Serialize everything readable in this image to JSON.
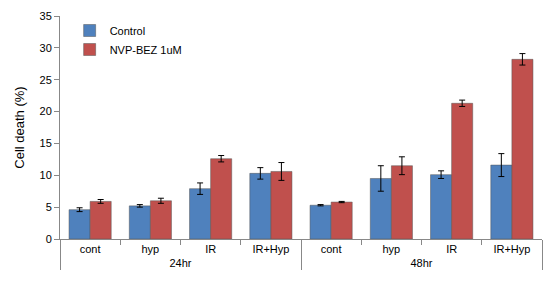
{
  "chart_data": {
    "type": "bar",
    "y_label": "Cell death (%)",
    "categories": [
      [
        "24hr",
        "cont"
      ],
      [
        "24hr",
        "hyp"
      ],
      [
        "24hr",
        "IR"
      ],
      [
        "24hr",
        "IR+Hyp"
      ],
      [
        "48hr",
        "cont"
      ],
      [
        "48hr",
        "hyp"
      ],
      [
        "48hr",
        "IR"
      ],
      [
        "48hr",
        "IR+Hyp"
      ]
    ],
    "series": [
      {
        "name": "Control",
        "color": "#4f81bd",
        "values": [
          4.6,
          5.2,
          7.9,
          10.3,
          5.3,
          9.5,
          10.1,
          11.6
        ],
        "errors": [
          0.3,
          0.2,
          0.9,
          0.9,
          0.1,
          2.0,
          0.6,
          1.8
        ]
      },
      {
        "name": "NVP-BEZ 1uM",
        "color": "#c0504d",
        "values": [
          5.9,
          6.0,
          12.6,
          10.6,
          5.8,
          11.5,
          21.3,
          28.2
        ],
        "errors": [
          0.3,
          0.4,
          0.5,
          1.4,
          0.1,
          1.4,
          0.5,
          0.9
        ]
      }
    ],
    "ylim": [
      0,
      35
    ],
    "yticks": [
      0,
      5,
      10,
      15,
      20,
      25,
      30,
      35
    ],
    "grid": false,
    "legend": "top-left"
  }
}
